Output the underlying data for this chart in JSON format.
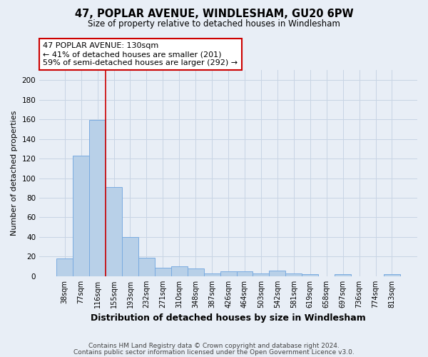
{
  "title": "47, POPLAR AVENUE, WINDLESHAM, GU20 6PW",
  "subtitle": "Size of property relative to detached houses in Windlesham",
  "xlabel": "Distribution of detached houses by size in Windlesham",
  "ylabel": "Number of detached properties",
  "footnote1": "Contains HM Land Registry data © Crown copyright and database right 2024.",
  "footnote2": "Contains public sector information licensed under the Open Government Licence v3.0.",
  "categories": [
    "38sqm",
    "77sqm",
    "116sqm",
    "155sqm",
    "193sqm",
    "232sqm",
    "271sqm",
    "310sqm",
    "348sqm",
    "387sqm",
    "426sqm",
    "464sqm",
    "503sqm",
    "542sqm",
    "581sqm",
    "619sqm",
    "658sqm",
    "697sqm",
    "736sqm",
    "774sqm",
    "813sqm"
  ],
  "values": [
    18,
    123,
    159,
    91,
    40,
    19,
    9,
    10,
    8,
    3,
    5,
    5,
    3,
    6,
    3,
    2,
    0,
    2,
    0,
    0,
    2
  ],
  "bar_color": "#b8d0e8",
  "bar_edge_color": "#7aabe0",
  "grid_color": "#c8d4e4",
  "background_color": "#e8eef6",
  "red_line_x": 2.5,
  "annotation_line1": "47 POPLAR AVENUE: 130sqm",
  "annotation_line2": "← 41% of detached houses are smaller (201)",
  "annotation_line3": "59% of semi-detached houses are larger (292) →",
  "annotation_box_color": "#ffffff",
  "annotation_box_edge": "#cc0000",
  "ylim": [
    0,
    210
  ],
  "yticks": [
    0,
    20,
    40,
    60,
    80,
    100,
    120,
    140,
    160,
    180,
    200
  ]
}
